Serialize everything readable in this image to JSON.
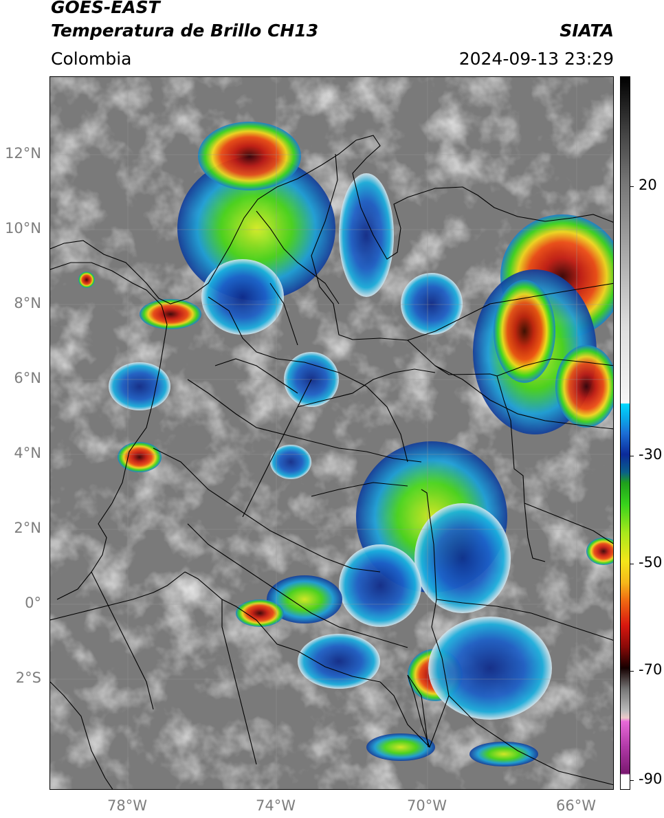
{
  "header": {
    "title_line1": "GOES-EAST",
    "title_line2": "Temperatura de Brillo CH13",
    "brand": "SIATA",
    "region": "Colombia",
    "timestamp": "2024-09-13 23:29"
  },
  "map": {
    "lat_labels": [
      "12°N",
      "10°N",
      "8°N",
      "6°N",
      "4°N",
      "2°N",
      "0°",
      "2°S"
    ],
    "lon_labels": [
      "78°W",
      "74°W",
      "70°W",
      "66°W"
    ],
    "colors": {
      "background_gray": "#7a7a7a",
      "cold_red": "#e81b10",
      "warm_green": "#3cd81a",
      "blue_band": "#1a4fc0",
      "yellow": "#f4e31a"
    }
  },
  "colorbar": {
    "labels": [
      "20",
      "-30",
      "-50",
      "-70",
      "-90"
    ]
  }
}
